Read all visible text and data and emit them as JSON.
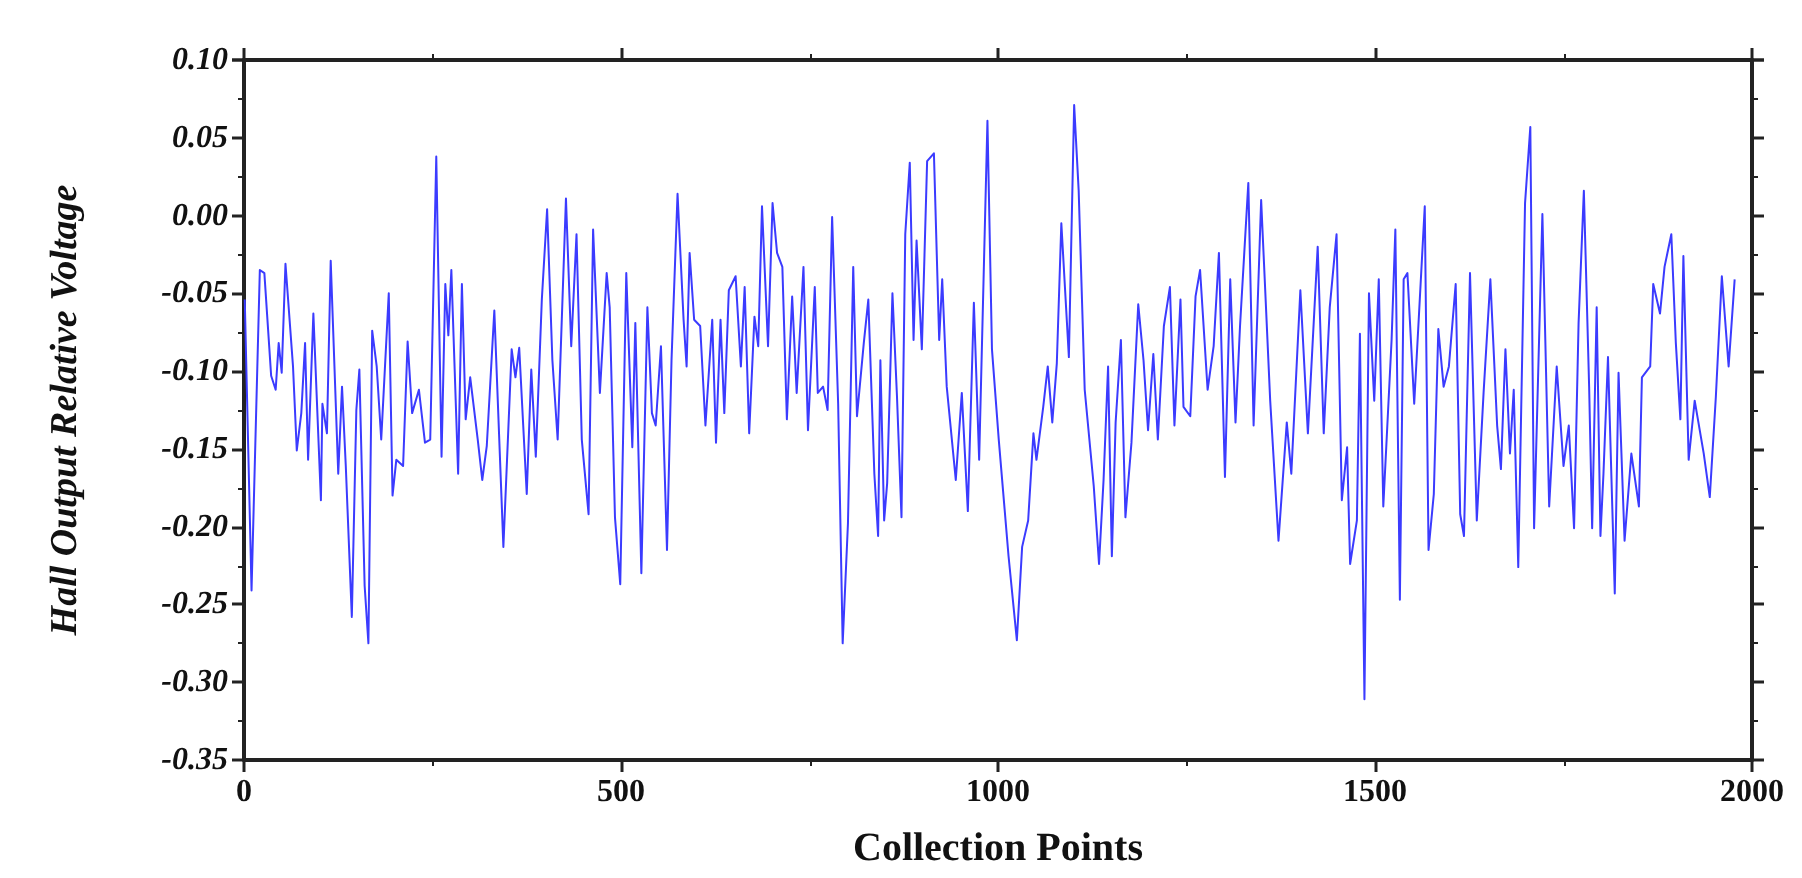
{
  "chart_data": {
    "type": "line",
    "xlabel": "Collection Points",
    "ylabel": "Hall Output Relative Voltage",
    "x": [
      1,
      10,
      21,
      27,
      36,
      42,
      46,
      50,
      55,
      65,
      70,
      76,
      81,
      85,
      92,
      102,
      104,
      110,
      115,
      125,
      130,
      135,
      143,
      149,
      153,
      160,
      165,
      170,
      176,
      182,
      192,
      197,
      202,
      211,
      217,
      223,
      232,
      240,
      247,
      255,
      262,
      267,
      271,
      275,
      284,
      289,
      294,
      300,
      310,
      316,
      322,
      332,
      344,
      355,
      360,
      365,
      375,
      381,
      387,
      395,
      402,
      409,
      416,
      427,
      434,
      441,
      448,
      457,
      463,
      472,
      481,
      485,
      492,
      499,
      507,
      515,
      519,
      527,
      535,
      541,
      546,
      553,
      561,
      567,
      575,
      583,
      587,
      591,
      597,
      605,
      612,
      621,
      626,
      632,
      637,
      643,
      652,
      659,
      664,
      670,
      677,
      682,
      687,
      695,
      701,
      707,
      714,
      720,
      727,
      733,
      742,
      748,
      757,
      761,
      768,
      774,
      780,
      788,
      794,
      801,
      808,
      813,
      822,
      828,
      836,
      841,
      844,
      849,
      853,
      860,
      866,
      872,
      877,
      883,
      888,
      892,
      899,
      906,
      915,
      922,
      926,
      932,
      944,
      952,
      960,
      968,
      975,
      986,
      992,
      1001,
      1014,
      1025,
      1032,
      1040,
      1047,
      1051,
      1060,
      1066,
      1072,
      1078,
      1084,
      1094,
      1101,
      1107,
      1115,
      1127,
      1134,
      1140,
      1146,
      1151,
      1156,
      1163,
      1169,
      1177,
      1186,
      1193,
      1199,
      1206,
      1212,
      1220,
      1228,
      1234,
      1242,
      1246,
      1255,
      1262,
      1268,
      1278,
      1286,
      1293,
      1301,
      1308,
      1315,
      1321,
      1332,
      1339,
      1349,
      1361,
      1372,
      1383,
      1389,
      1401,
      1411,
      1424,
      1432,
      1440,
      1449,
      1456,
      1463,
      1467,
      1476,
      1480,
      1486,
      1492,
      1499,
      1505,
      1511,
      1522,
      1527,
      1533,
      1538,
      1543,
      1552,
      1566,
      1571,
      1578,
      1584,
      1591,
      1598,
      1607,
      1613,
      1618,
      1626,
      1635,
      1644,
      1653,
      1662,
      1667,
      1673,
      1679,
      1684,
      1690,
      1699,
      1706,
      1711,
      1722,
      1731,
      1741,
      1750,
      1757,
      1764,
      1770,
      1777,
      1784,
      1788,
      1794,
      1799,
      1803,
      1809,
      1818,
      1823,
      1831,
      1840,
      1850,
      1854,
      1865,
      1869,
      1878,
      1884,
      1893,
      1899,
      1905,
      1909,
      1916,
      1924,
      1936,
      1944,
      1952,
      1960,
      1969,
      1977
    ],
    "series": [
      {
        "color": "#3b3bff",
        "values": [
          -0.054,
          -0.241,
          -0.035,
          -0.037,
          -0.103,
          -0.112,
          -0.082,
          -0.101,
          -0.031,
          -0.097,
          -0.151,
          -0.127,
          -0.082,
          -0.157,
          -0.063,
          -0.183,
          -0.121,
          -0.14,
          -0.029,
          -0.166,
          -0.11,
          -0.161,
          -0.258,
          -0.125,
          -0.099,
          -0.238,
          -0.275,
          -0.074,
          -0.097,
          -0.144,
          -0.05,
          -0.18,
          -0.157,
          -0.161,
          -0.081,
          -0.127,
          -0.112,
          -0.146,
          -0.144,
          0.038,
          -0.155,
          -0.044,
          -0.077,
          -0.035,
          -0.166,
          -0.044,
          -0.131,
          -0.104,
          -0.144,
          -0.17,
          -0.148,
          -0.061,
          -0.213,
          -0.086,
          -0.104,
          -0.085,
          -0.179,
          -0.099,
          -0.155,
          -0.054,
          0.004,
          -0.093,
          -0.144,
          0.011,
          -0.084,
          -0.012,
          -0.144,
          -0.192,
          -0.009,
          -0.114,
          -0.037,
          -0.059,
          -0.194,
          -0.237,
          -0.037,
          -0.149,
          -0.069,
          -0.23,
          -0.059,
          -0.127,
          -0.135,
          -0.084,
          -0.215,
          -0.093,
          0.014,
          -0.067,
          -0.097,
          -0.024,
          -0.067,
          -0.071,
          -0.135,
          -0.067,
          -0.146,
          -0.067,
          -0.127,
          -0.048,
          -0.039,
          -0.097,
          -0.046,
          -0.14,
          -0.065,
          -0.084,
          0.006,
          -0.084,
          0.008,
          -0.024,
          -0.033,
          -0.131,
          -0.052,
          -0.114,
          -0.033,
          -0.138,
          -0.046,
          -0.114,
          -0.11,
          -0.125,
          -0.001,
          -0.121,
          -0.275,
          -0.198,
          -0.033,
          -0.129,
          -0.082,
          -0.054,
          -0.166,
          -0.206,
          -0.093,
          -0.196,
          -0.172,
          -0.05,
          -0.116,
          -0.194,
          -0.012,
          0.034,
          -0.08,
          -0.016,
          -0.086,
          0.035,
          0.04,
          -0.08,
          -0.041,
          -0.11,
          -0.17,
          -0.114,
          -0.19,
          -0.056,
          -0.157,
          0.061,
          -0.086,
          -0.144,
          -0.219,
          -0.273,
          -0.213,
          -0.196,
          -0.14,
          -0.157,
          -0.123,
          -0.097,
          -0.133,
          -0.095,
          -0.005,
          -0.091,
          0.071,
          0.016,
          -0.112,
          -0.174,
          -0.224,
          -0.17,
          -0.097,
          -0.219,
          -0.133,
          -0.08,
          -0.194,
          -0.146,
          -0.057,
          -0.093,
          -0.138,
          -0.089,
          -0.144,
          -0.071,
          -0.046,
          -0.135,
          -0.054,
          -0.123,
          -0.129,
          -0.052,
          -0.035,
          -0.112,
          -0.084,
          -0.024,
          -0.168,
          -0.041,
          -0.133,
          -0.071,
          0.021,
          -0.135,
          0.01,
          -0.119,
          -0.209,
          -0.133,
          -0.166,
          -0.048,
          -0.14,
          -0.02,
          -0.14,
          -0.059,
          -0.012,
          -0.183,
          -0.149,
          -0.224,
          -0.196,
          -0.076,
          -0.311,
          -0.05,
          -0.119,
          -0.041,
          -0.187,
          -0.08,
          -0.009,
          -0.247,
          -0.041,
          -0.037,
          -0.121,
          0.006,
          -0.215,
          -0.179,
          -0.073,
          -0.11,
          -0.097,
          -0.044,
          -0.192,
          -0.206,
          -0.037,
          -0.196,
          -0.114,
          -0.041,
          -0.135,
          -0.163,
          -0.086,
          -0.153,
          -0.112,
          -0.226,
          0.008,
          0.057,
          -0.201,
          0.001,
          -0.187,
          -0.097,
          -0.161,
          -0.135,
          -0.201,
          -0.069,
          0.016,
          -0.11,
          -0.201,
          -0.059,
          -0.206,
          -0.166,
          -0.091,
          -0.243,
          -0.101,
          -0.209,
          -0.153,
          -0.187,
          -0.104,
          -0.097,
          -0.044,
          -0.063,
          -0.033,
          -0.012,
          -0.082,
          -0.131,
          -0.026,
          -0.157,
          -0.119,
          -0.153,
          -0.181,
          -0.117,
          -0.039,
          -0.097,
          -0.041
        ]
      }
    ],
    "xlim": [
      0,
      2000
    ],
    "xticks": [
      0,
      500,
      1000,
      1500,
      2000
    ],
    "ylim": [
      -0.35,
      0.1
    ],
    "yticks": [
      {
        "value": -0.35,
        "label": "-0.35"
      },
      {
        "value": -0.3,
        "label": "-0.30"
      },
      {
        "value": -0.25,
        "label": "-0.25"
      },
      {
        "value": -0.2,
        "label": "-0.20"
      },
      {
        "value": -0.15,
        "label": "-0.15"
      },
      {
        "value": -0.1,
        "label": "-0.10"
      },
      {
        "value": -0.05,
        "label": "-0.05"
      },
      {
        "value": 0,
        "label": "0.00"
      },
      {
        "value": 0.05,
        "label": "0.05"
      },
      {
        "value": 0.1,
        "label": "0.10"
      }
    ],
    "grid": false,
    "marker": "none",
    "line_style": "solid"
  }
}
